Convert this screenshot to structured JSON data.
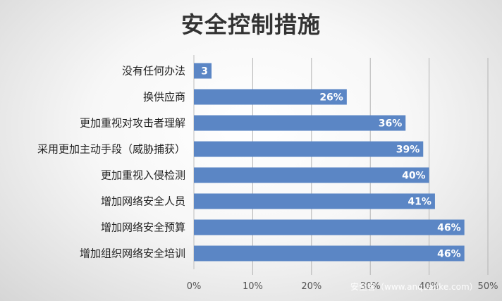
{
  "chart_data": {
    "type": "bar",
    "orientation": "horizontal",
    "title": "安全控制措施",
    "categories": [
      "没有任何办法",
      "换供应商",
      "更加重视对攻击者理解",
      "采用更加主动手段（威胁捕获）",
      "更加重视入侵检测",
      "增加网络安全人员",
      "增加网络安全预算",
      "增加组织网络安全培训"
    ],
    "values": [
      3,
      26,
      36,
      39,
      40,
      41,
      46,
      46
    ],
    "data_labels": [
      "3",
      "26%",
      "36%",
      "39%",
      "40%",
      "41%",
      "46%",
      "46%"
    ],
    "xlim": [
      0,
      50
    ],
    "xticks": [
      "0%",
      "10%",
      "20%",
      "30%",
      "40%",
      "50%"
    ],
    "grid": true,
    "bar_color": "#5B86C5"
  },
  "watermark": "安全客（www.anquanke.com）"
}
